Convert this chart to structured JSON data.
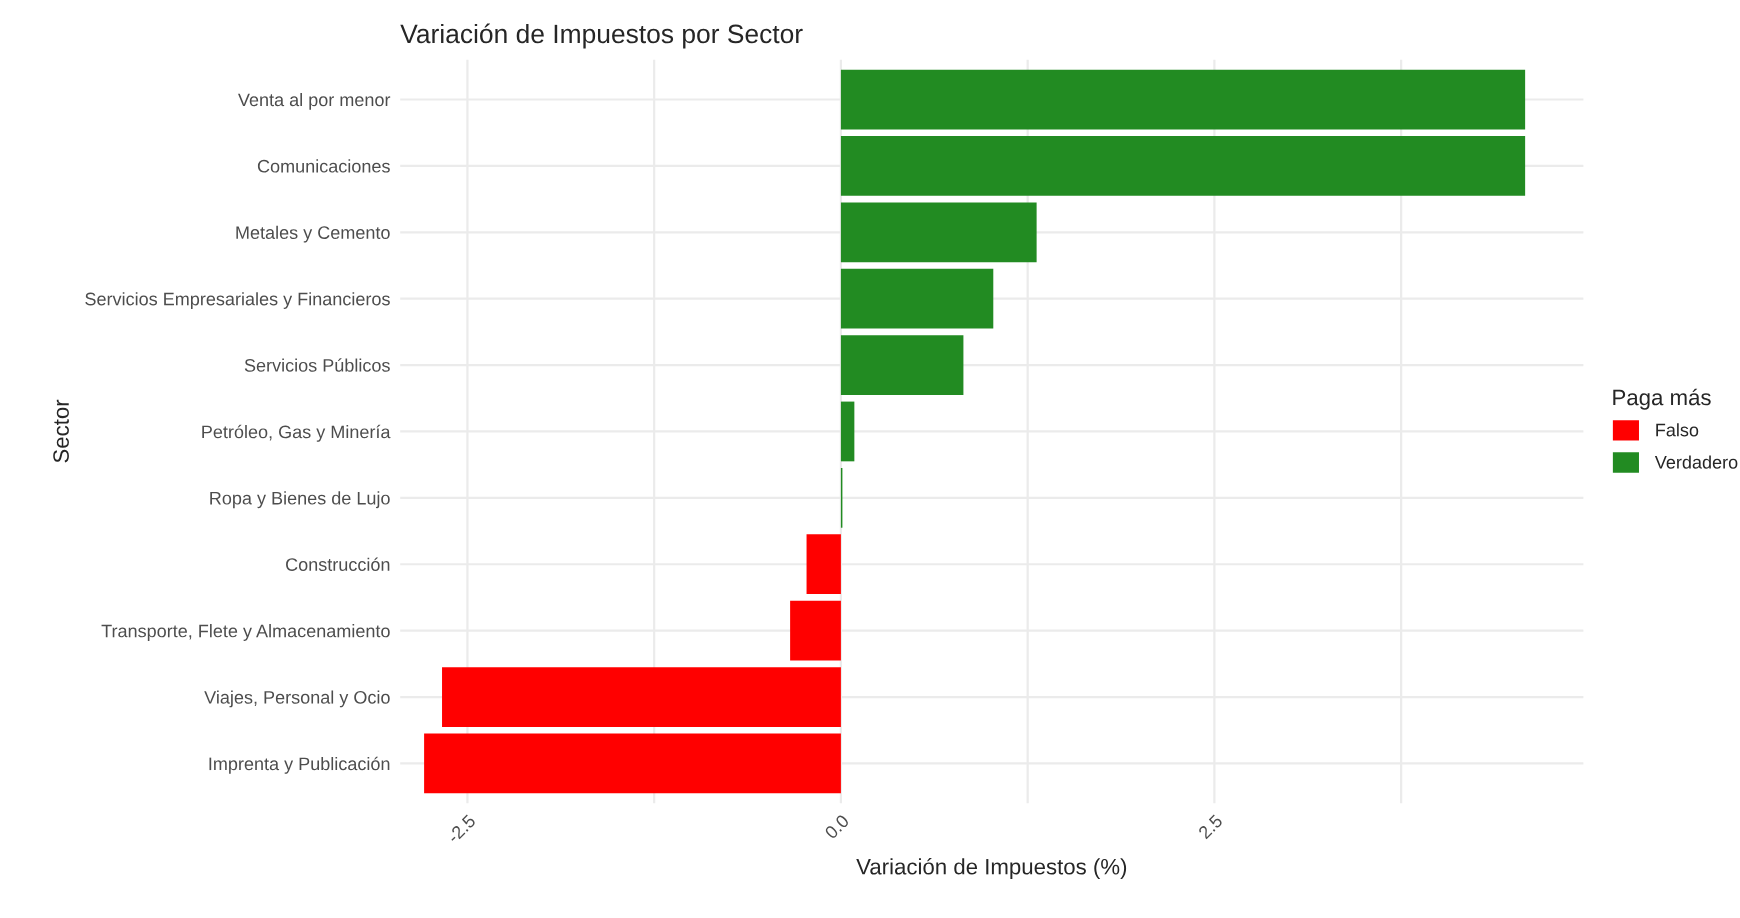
{
  "chart_data": {
    "type": "bar",
    "orientation": "horizontal",
    "title": "Variación de Impuestos por Sector",
    "xlabel": "Variación de Impuestos (%)",
    "ylabel": "Sector",
    "legend_title": "Paga más",
    "categories": [
      "Venta al por menor",
      "Comunicaciones",
      "Metales y Cemento",
      "Servicios Empresariales y Financieros",
      "Servicios Públicos",
      "Petróleo, Gas y Minería",
      "Ropa y Bienes de Lujo",
      "Construcción",
      "Transporte, Flete y Almacenamiento",
      "Viajes, Personal y Ocio",
      "Imprenta y Publicación"
    ],
    "series": [
      {
        "name": "Falso",
        "color": "#ff0000",
        "values": [
          null,
          null,
          null,
          null,
          null,
          null,
          null,
          -0.23,
          -0.34,
          -2.67,
          -2.79
        ]
      },
      {
        "name": "Verdadero",
        "color": "#228b22",
        "values": [
          4.58,
          4.58,
          1.31,
          1.02,
          0.82,
          0.09,
          0.01,
          null,
          null,
          null,
          null
        ]
      }
    ],
    "xlim": [
      -2.95,
      4.97
    ],
    "xticks": [
      {
        "value": -2.5,
        "label": "-2.5"
      },
      {
        "value": -1.25,
        "label": null
      },
      {
        "value": 0,
        "label": "0.0"
      },
      {
        "value": 1.25,
        "label": null
      },
      {
        "value": 2.5,
        "label": "2.5"
      },
      {
        "value": 3.75,
        "label": null
      }
    ],
    "grid": true,
    "legend": "right"
  }
}
